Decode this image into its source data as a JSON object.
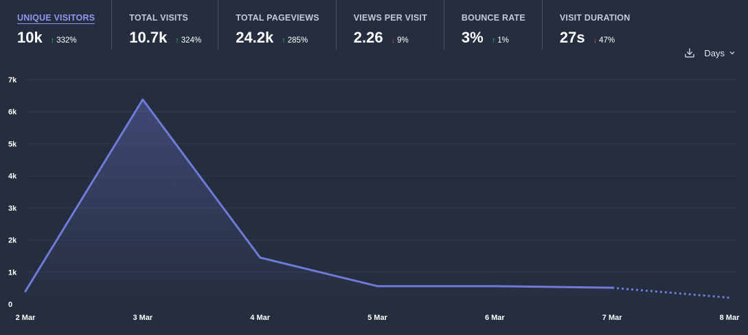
{
  "metrics": [
    {
      "label": "UNIQUE VISITORS",
      "value": "10k",
      "change": "332%",
      "direction": "up",
      "active": true
    },
    {
      "label": "TOTAL VISITS",
      "value": "10.7k",
      "change": "324%",
      "direction": "up",
      "active": false
    },
    {
      "label": "TOTAL PAGEVIEWS",
      "value": "24.2k",
      "change": "285%",
      "direction": "up",
      "active": false
    },
    {
      "label": "VIEWS PER VISIT",
      "value": "2.26",
      "change": "9%",
      "direction": "down",
      "active": false
    },
    {
      "label": "BOUNCE RATE",
      "value": "3%",
      "change": "1%",
      "direction": "up",
      "active": false
    },
    {
      "label": "VISIT DURATION",
      "value": "27s",
      "change": "47%",
      "direction": "down",
      "active": false
    }
  ],
  "controls": {
    "download_icon": "download-icon",
    "interval_label": "Days"
  },
  "colors": {
    "line": "#6f7ad9",
    "grid": "#323b4c",
    "up": "#22c55e",
    "down": "#ef4444"
  },
  "chart_data": {
    "type": "line",
    "categories": [
      "2 Mar",
      "3 Mar",
      "4 Mar",
      "5 Mar",
      "6 Mar",
      "7 Mar",
      "8 Mar"
    ],
    "series": [
      {
        "values": [
          400,
          6380,
          1450,
          560,
          560,
          510,
          200
        ],
        "dashed_from_index": 5
      }
    ],
    "y_ticks": [
      "0",
      "1k",
      "2k",
      "3k",
      "4k",
      "5k",
      "6k",
      "7k"
    ],
    "ylim": [
      0,
      7000
    ],
    "grid": true
  }
}
